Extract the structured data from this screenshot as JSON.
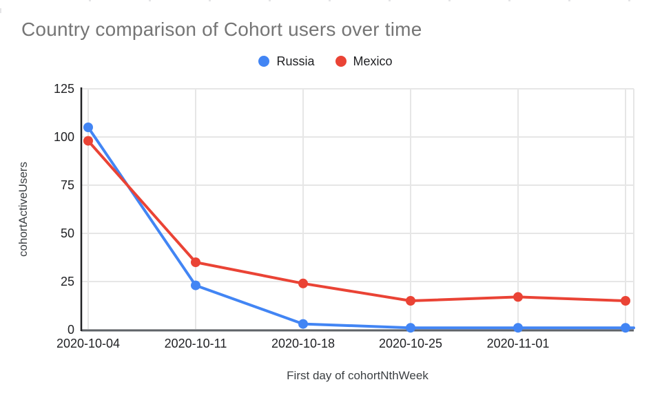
{
  "page": {
    "background": "#ffffff",
    "title_color": "#757575"
  },
  "chart_data": {
    "type": "line",
    "title": "Country comparison of Cohort users over time",
    "xlabel": "First day of cohortNthWeek",
    "ylabel": "cohortActiveUsers",
    "x_labels": [
      "2020-10-04",
      "2020-10-11",
      "2020-10-18",
      "2020-10-25",
      "2020-11-01"
    ],
    "y_ticks": [
      0,
      25,
      50,
      75,
      100,
      125
    ],
    "ylim": [
      0,
      125
    ],
    "grid": true,
    "legend_position": "top-center",
    "gridline_color": "#e6e6e6",
    "x_axis_color": "#5f6368",
    "y_axis_color": "#202124",
    "series": [
      {
        "name": "Russia",
        "color": "#4285F4",
        "values": [
          105,
          23,
          3,
          1,
          1,
          1
        ],
        "extends_to_right_edge": true
      },
      {
        "name": "Mexico",
        "color": "#EA4335",
        "values": [
          98,
          35,
          24,
          15,
          17,
          15
        ],
        "extends_to_right_edge": false
      }
    ]
  }
}
